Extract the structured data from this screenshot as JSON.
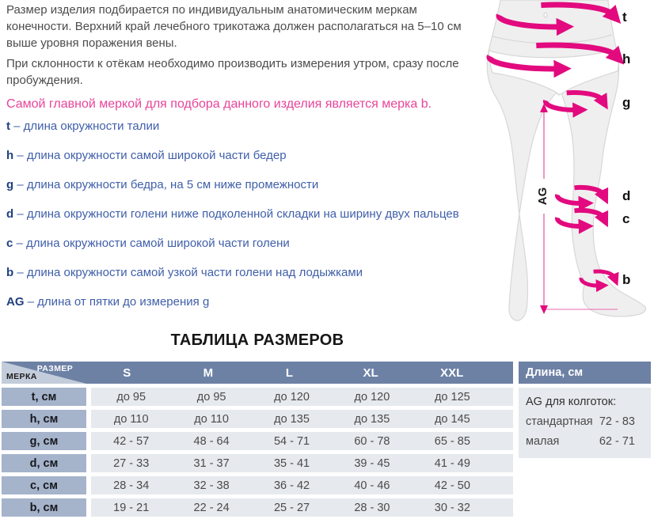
{
  "intro": {
    "p1": "Размер изделия подбирается по индивидуальным анатомическим меркам конечности. Верхний край лечебного трикотажа должен располагаться на 5–10 см выше уровня поражения вены.",
    "p2": "При склонности к отёкам необходимо производить измерения утром, сразу после пробуждения.",
    "highlight": "Самой главной меркой для подбора данного изделия является мерка b."
  },
  "measurements": [
    {
      "term": "t",
      "desc": "– длина окружности талии"
    },
    {
      "term": "h",
      "desc": "– длина окружности самой широкой части бедер"
    },
    {
      "term": "g",
      "desc": "– длина окружности бедра, на 5 см ниже промежности"
    },
    {
      "term": "d",
      "desc": "– длина окружности голени ниже подколенной складки на ширину двух пальцев"
    },
    {
      "term": "c",
      "desc": "– длина окружности самой широкой части голени"
    },
    {
      "term": "b",
      "desc": "– длина окружности самой узкой части голени над лодыжками"
    },
    {
      "term": "AG",
      "desc": "– длина от пятки до измерения g"
    }
  ],
  "diagram": {
    "labels": {
      "t": "t",
      "h": "h",
      "g": "g",
      "d": "d",
      "c": "c",
      "b": "b",
      "ag": "AG"
    },
    "accent_color": "#e20a7e",
    "body_fill": "#efefef",
    "body_stroke": "#d7d7d7"
  },
  "size_table": {
    "title": "ТАБЛИЦА РАЗМЕРОВ",
    "corner_top": "РАЗМЕР",
    "corner_bottom": "МЕРКА",
    "columns": [
      "S",
      "M",
      "L",
      "XL",
      "XXL"
    ],
    "rows": [
      {
        "label": "t, см",
        "values": [
          "до 95",
          "до 95",
          "до 120",
          "до 120",
          "до 125"
        ]
      },
      {
        "label": "h, см",
        "values": [
          "до 110",
          "до 110",
          "до 135",
          "до 135",
          "до 145"
        ]
      },
      {
        "label": "g, см",
        "values": [
          "42 - 57",
          "48 - 64",
          "54 - 71",
          "60 - 78",
          "65 - 85"
        ]
      },
      {
        "label": "d, см",
        "values": [
          "27 - 33",
          "31 - 37",
          "35 - 41",
          "39 - 45",
          "41 - 49"
        ]
      },
      {
        "label": "c, см",
        "values": [
          "28 - 34",
          "32 - 38",
          "36 - 42",
          "40 - 46",
          "42 - 50"
        ]
      },
      {
        "label": "b, см",
        "values": [
          "19 - 21",
          "22 - 24",
          "25 - 27",
          "28 - 30",
          "30 - 32"
        ]
      }
    ],
    "header_color": "#6d81a5",
    "label_cell_color": "#a5b3cb",
    "data_cell_color": "#e6e9ed",
    "corner_triangle_color": "#c3ccda"
  },
  "length_panel": {
    "title": "Длина, см",
    "subtitle": "AG для колготок:",
    "rows": [
      {
        "label": "стандартная",
        "value": "72 - 83"
      },
      {
        "label": "малая",
        "value": "62 - 71"
      }
    ]
  }
}
